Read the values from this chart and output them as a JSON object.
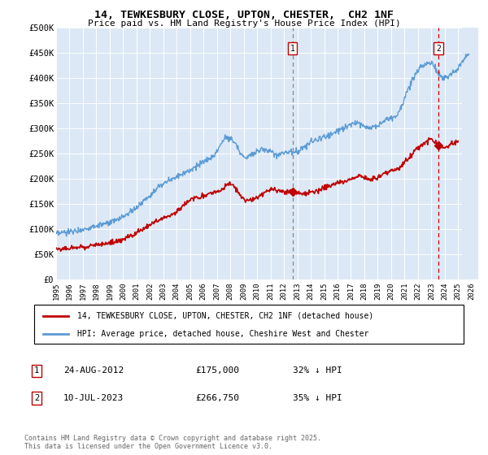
{
  "title": "14, TEWKESBURY CLOSE, UPTON, CHESTER,  CH2 1NF",
  "subtitle": "Price paid vs. HM Land Registry's House Price Index (HPI)",
  "legend_line1": "14, TEWKESBURY CLOSE, UPTON, CHESTER, CH2 1NF (detached house)",
  "legend_line2": "HPI: Average price, detached house, Cheshire West and Chester",
  "marker1_date": "24-AUG-2012",
  "marker1_price": "£175,000",
  "marker1_pct": "32% ↓ HPI",
  "marker1_year": 2012.65,
  "marker1_value": 175000,
  "marker2_date": "10-JUL-2023",
  "marker2_price": "£266,750",
  "marker2_pct": "35% ↓ HPI",
  "marker2_year": 2023.52,
  "marker2_value": 266750,
  "hpi_color": "#5b9bd5",
  "price_color": "#c00000",
  "vline1_color": "#888888",
  "vline2_color": "#cc0000",
  "bg_color": "#ddeeff",
  "bg_color_left": "#eef4ff",
  "grid_color": "#ffffff",
  "ylim": [
    0,
    500000
  ],
  "xlim_min": 1995,
  "xlim_max": 2026.5,
  "hatch_start": 2025.3,
  "footnote": "Contains HM Land Registry data © Crown copyright and database right 2025.\nThis data is licensed under the Open Government Licence v3.0."
}
